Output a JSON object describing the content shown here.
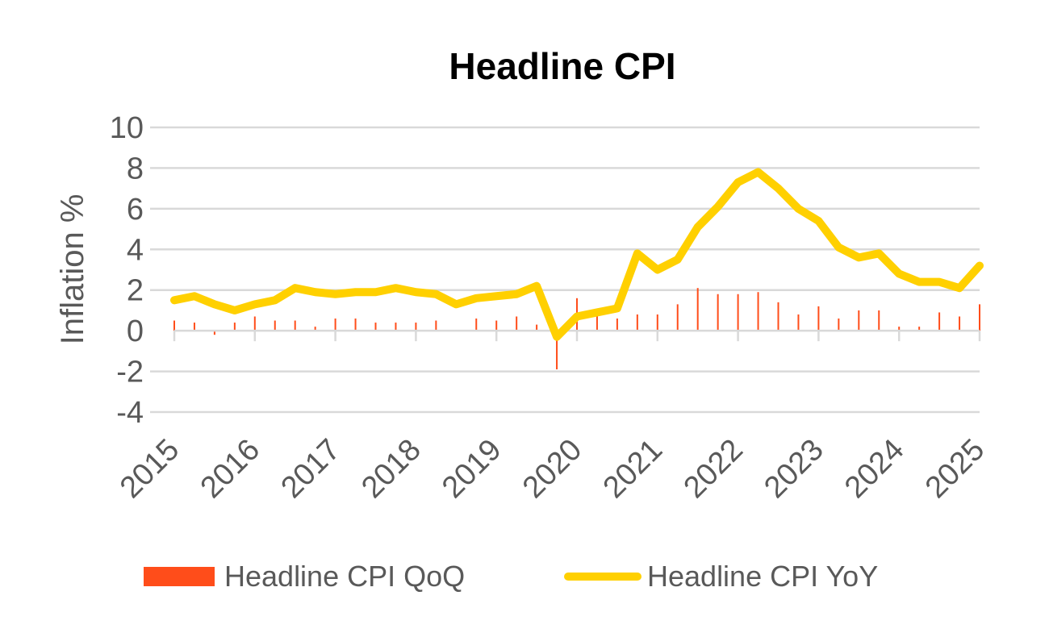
{
  "chart_data": {
    "type": "bar+line",
    "title": "Headline CPI",
    "ylabel": "Inflation %",
    "xlabel": "",
    "ylim": [
      -4,
      10
    ],
    "yticks": [
      10,
      8,
      6,
      4,
      2,
      0,
      -2,
      -4
    ],
    "xtick_labels": [
      "2015",
      "2016",
      "2017",
      "2018",
      "2019",
      "2020",
      "2021",
      "2022",
      "2023",
      "2024",
      "2025"
    ],
    "grid": true,
    "legend_position": "bottom",
    "colors": {
      "qoq": "#FF4D1A",
      "yoy": "#FFD000",
      "grid": "#D9D9D9",
      "text": "#595959"
    },
    "x": [
      "2015 Q1",
      "2015 Q2",
      "2015 Q3",
      "2015 Q4",
      "2016 Q1",
      "2016 Q2",
      "2016 Q3",
      "2016 Q4",
      "2017 Q1",
      "2017 Q2",
      "2017 Q3",
      "2017 Q4",
      "2018 Q1",
      "2018 Q2",
      "2018 Q3",
      "2018 Q4",
      "2019 Q1",
      "2019 Q2",
      "2019 Q3",
      "2019 Q4",
      "2020 Q1",
      "2020 Q2",
      "2020 Q3",
      "2020 Q4",
      "2021 Q1",
      "2021 Q2",
      "2021 Q3",
      "2021 Q4",
      "2022 Q1",
      "2022 Q2",
      "2022 Q3",
      "2022 Q4",
      "2023 Q1",
      "2023 Q2",
      "2023 Q3",
      "2023 Q4",
      "2024 Q1",
      "2024 Q2",
      "2024 Q3",
      "2024 Q4",
      "2025 Q1"
    ],
    "series": [
      {
        "name": "Headline CPI QoQ",
        "type": "bar",
        "values": [
          0.5,
          0.4,
          -0.2,
          0.4,
          0.7,
          0.5,
          0.5,
          0.2,
          0.6,
          0.6,
          0.4,
          0.4,
          0.4,
          0.5,
          0.0,
          0.6,
          0.5,
          0.7,
          0.3,
          -1.9,
          1.6,
          0.8,
          0.6,
          0.8,
          0.8,
          1.3,
          2.1,
          1.8,
          1.8,
          1.9,
          1.4,
          0.8,
          1.2,
          0.6,
          1.0,
          1.0,
          0.2,
          0.2,
          0.9,
          0.7,
          1.3
        ]
      },
      {
        "name": "Headline CPI YoY",
        "type": "line",
        "values": [
          1.5,
          1.7,
          1.3,
          1.0,
          1.3,
          1.5,
          2.1,
          1.9,
          1.8,
          1.9,
          1.9,
          2.1,
          1.9,
          1.8,
          1.3,
          1.6,
          1.7,
          1.8,
          2.2,
          -0.3,
          0.7,
          0.9,
          1.1,
          3.8,
          3.0,
          3.5,
          5.1,
          6.1,
          7.3,
          7.8,
          7.0,
          6.0,
          5.4,
          4.1,
          3.6,
          3.8,
          2.8,
          2.4,
          2.4,
          2.1,
          3.2
        ]
      }
    ]
  }
}
